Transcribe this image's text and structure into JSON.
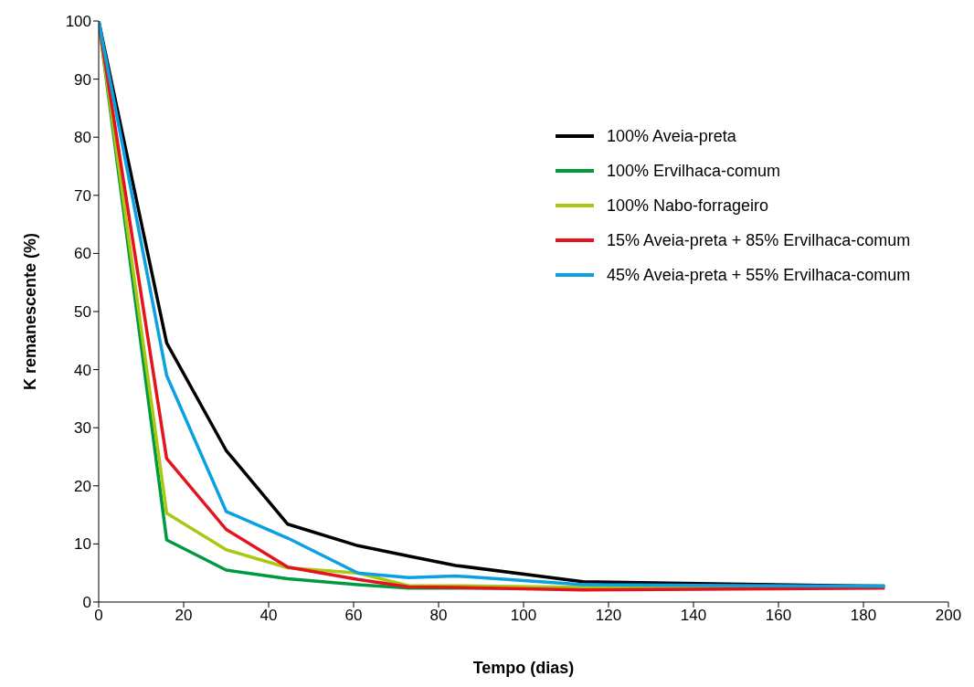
{
  "chart_data": {
    "type": "line",
    "xlabel": "Tempo (dias)",
    "ylabel": "K remanescente (%)",
    "x": [
      0,
      16,
      30,
      44.5,
      61,
      73,
      84,
      114,
      185
    ],
    "series": [
      {
        "name": "100% Aveia-preta",
        "color": "#000000",
        "values": [
          100,
          44.6,
          26.1,
          13.4,
          9.7,
          7.9,
          6.3,
          3.5,
          2.7
        ]
      },
      {
        "name": "100% Ervilhaca-comum",
        "color": "#009a3e",
        "values": [
          100,
          10.7,
          5.5,
          4,
          3,
          2.4,
          2.4,
          2.4,
          2.8
        ]
      },
      {
        "name": "100% Nabo-forrageiro",
        "color": "#a8c813",
        "values": [
          100,
          15.3,
          9,
          5.9,
          5,
          2.8,
          2.8,
          2.5,
          2.6
        ]
      },
      {
        "name": "15% Aveia-preta + 85% Ervilhaca-comum",
        "color": "#e3141d",
        "values": [
          100,
          24.7,
          12.5,
          6,
          3.9,
          2.6,
          2.5,
          2.1,
          2.4
        ]
      },
      {
        "name": "45% Aveia-preta + 55% Ervilhaca-comum",
        "color": "#0ba0e0",
        "values": [
          100,
          39,
          15.6,
          11,
          5,
          4.2,
          4.5,
          3,
          2.7
        ]
      }
    ],
    "xlim": [
      0,
      200
    ],
    "xticks": [
      0,
      20,
      40,
      60,
      80,
      100,
      120,
      140,
      160,
      180,
      200
    ],
    "ylim": [
      0,
      100
    ],
    "yticks": [
      0,
      10,
      20,
      30,
      40,
      50,
      60,
      70,
      80,
      90,
      100
    ],
    "grid": false,
    "legend": "top right",
    "marker": "none",
    "line_style": "solid"
  }
}
